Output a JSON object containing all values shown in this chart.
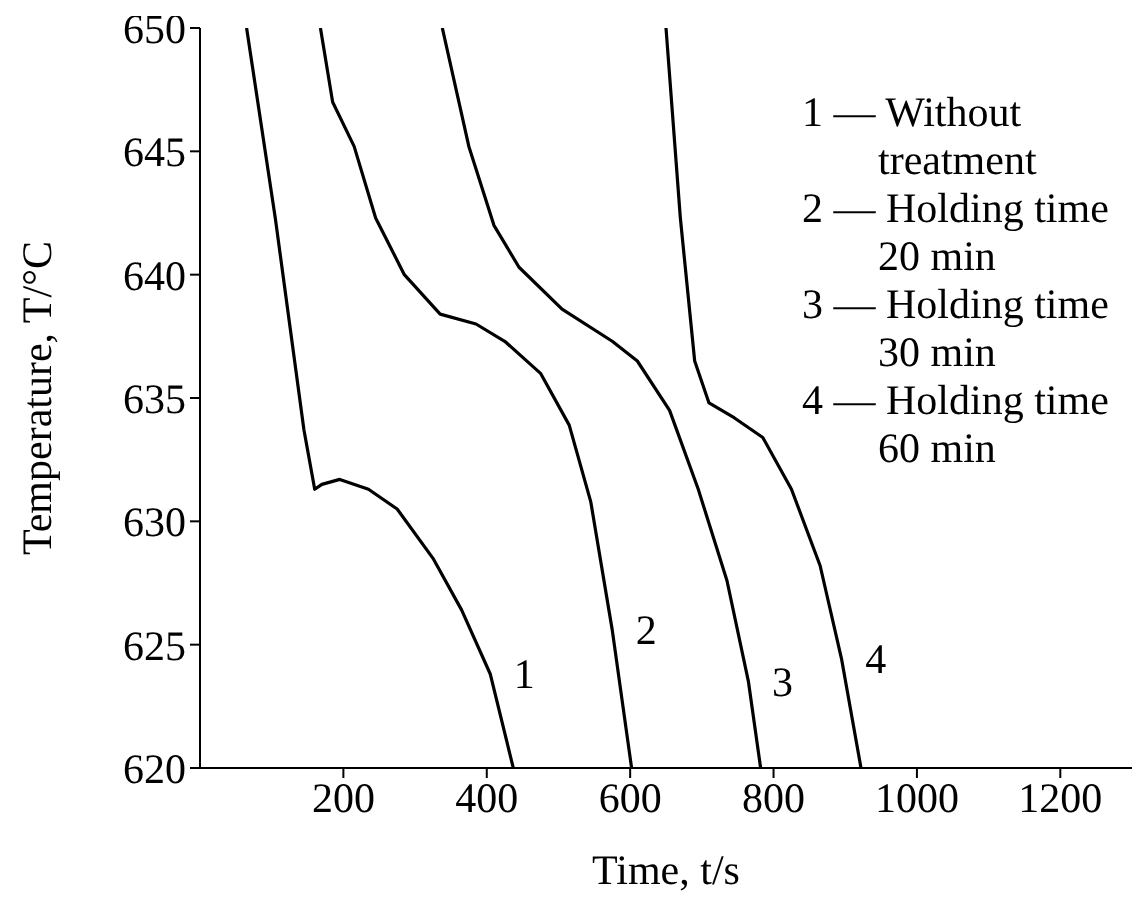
{
  "chart_data": {
    "type": "line",
    "xlabel": "Time, t/s",
    "ylabel": "Temperature, T/°C",
    "xlim": [
      0,
      1300
    ],
    "ylim": [
      620,
      650
    ],
    "xticks": [
      200,
      400,
      600,
      800,
      1000,
      1200
    ],
    "yticks": [
      620,
      625,
      630,
      635,
      640,
      645,
      650
    ],
    "marker": "none",
    "line_style": "solid",
    "series": [
      {
        "name": "1",
        "color": "#000000",
        "x": [
          65,
          105,
          145,
          160,
          170,
          195,
          235,
          275,
          325,
          365,
          405,
          437
        ],
        "values": [
          650,
          642.3,
          633.7,
          631.3,
          631.5,
          631.7,
          631.3,
          630.5,
          628.5,
          626.4,
          623.8,
          620
        ]
      },
      {
        "name": "2",
        "color": "#000000",
        "x": [
          168,
          185,
          215,
          245,
          285,
          335,
          385,
          425,
          475,
          515,
          545,
          575,
          602
        ],
        "values": [
          650,
          647,
          645.2,
          642.3,
          640,
          638.4,
          638,
          637.3,
          636,
          633.9,
          630.8,
          625.6,
          620
        ]
      },
      {
        "name": "3",
        "color": "#000000",
        "x": [
          338,
          375,
          410,
          445,
          505,
          575,
          610,
          655,
          695,
          735,
          765,
          782
        ],
        "values": [
          650,
          645.2,
          642,
          640.3,
          638.6,
          637.3,
          636.5,
          634.5,
          631.3,
          627.6,
          623.5,
          620
        ]
      },
      {
        "name": "4",
        "color": "#000000",
        "x": [
          650,
          670,
          690,
          710,
          745,
          785,
          825,
          865,
          895,
          922
        ],
        "values": [
          650,
          642.3,
          636.5,
          634.8,
          634.2,
          633.4,
          631.3,
          628.2,
          624.4,
          620
        ]
      }
    ],
    "annotations": [
      "1 — Without treatment",
      "2 — Holding time 20 min",
      "3 — Holding time 30 min",
      "4 — Holding time 60 min"
    ]
  }
}
